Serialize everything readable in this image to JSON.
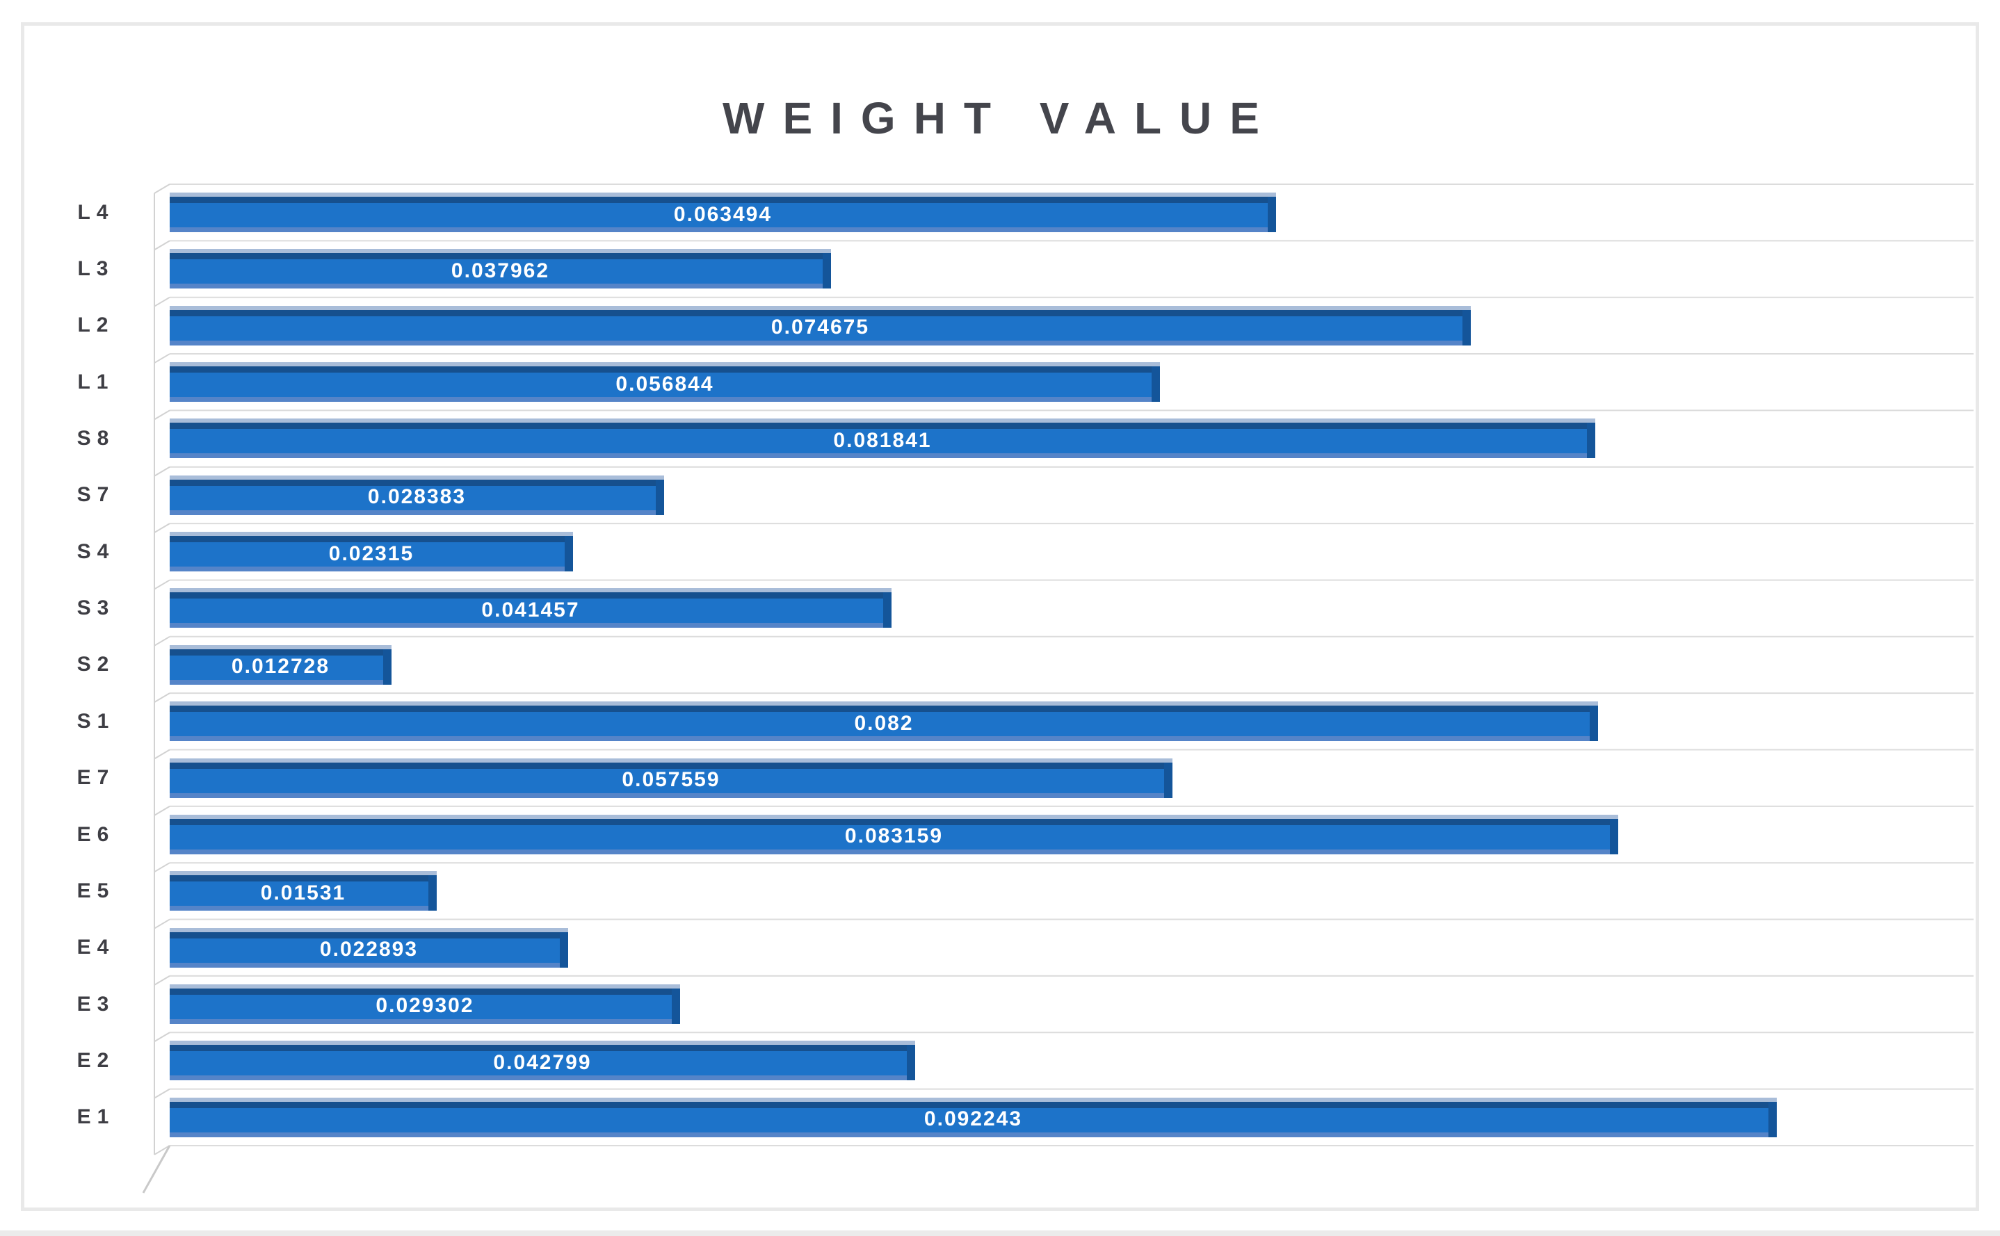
{
  "chart": {
    "title": "WEIGHT VALUE"
  },
  "chart_data": {
    "type": "bar",
    "orientation": "horizontal",
    "style": "3d-bevel",
    "title": "WEIGHT VALUE",
    "xlabel": "",
    "ylabel": "",
    "xlim": [
      0,
      0.1
    ],
    "legend": "none",
    "grid": "category-separator-lines",
    "categories_top_to_bottom": [
      "L4",
      "L3",
      "L2",
      "L1",
      "S8",
      "S7",
      "S4",
      "S3",
      "S2",
      "S1",
      "E7",
      "E6",
      "E5",
      "E4",
      "E3",
      "E2",
      "E1"
    ],
    "values": [
      0.063494,
      0.037962,
      0.074675,
      0.056844,
      0.081841,
      0.028383,
      0.02315,
      0.041457,
      0.012728,
      0.082,
      0.057559,
      0.083159,
      0.01531,
      0.022893,
      0.029302,
      0.042799,
      0.092243
    ],
    "data_labels": [
      "0.063494",
      "0.037962",
      "0.074675",
      "0.056844",
      "0.081841",
      "0.028383",
      "0.02315",
      "0.041457",
      "0.012728",
      "0.082",
      "0.057559",
      "0.083159",
      "0.01531",
      "0.022893",
      "0.029302",
      "0.042799",
      "0.092243"
    ],
    "colors": {
      "bar_fill": "#1d73c9",
      "bar_top_dark": "#16508e",
      "bar_top_light": "#a9bdd9",
      "bar_bottom_light": "#5584c8",
      "bar_side": "#14559a",
      "label_text": "#ffffff",
      "category_text": "#3e3e44",
      "title_text": "#44454c",
      "gridline": "#dcdcdc",
      "wall_line": "#d2d2d2",
      "frame_border": "#e9e9e9"
    }
  }
}
